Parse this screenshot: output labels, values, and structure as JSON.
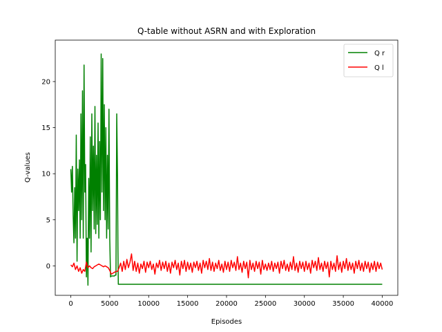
{
  "chart_data": {
    "type": "line",
    "title": "Q-table without ASRN and with Exploration",
    "xlabel": "Episodes",
    "ylabel": "Q-values",
    "xlim": [
      -2000,
      42000
    ],
    "ylim": [
      -3.2,
      24.5
    ],
    "xticks": [
      0,
      5000,
      10000,
      15000,
      20000,
      25000,
      30000,
      35000,
      40000
    ],
    "yticks": [
      0,
      5,
      10,
      15,
      20
    ],
    "grid": false,
    "legend_position": "upper right",
    "series": [
      {
        "name": "Q r",
        "color": "#008000",
        "points": [
          [
            0,
            10.5
          ],
          [
            100,
            8.0
          ],
          [
            200,
            10.8
          ],
          [
            300,
            5.5
          ],
          [
            400,
            2.5
          ],
          [
            500,
            8.5
          ],
          [
            600,
            3.0
          ],
          [
            700,
            14.2
          ],
          [
            800,
            0.5
          ],
          [
            900,
            10.5
          ],
          [
            1000,
            6.0
          ],
          [
            1100,
            11.5
          ],
          [
            1200,
            3.0
          ],
          [
            1300,
            16.5
          ],
          [
            1400,
            5.0
          ],
          [
            1500,
            19.0
          ],
          [
            1600,
            3.0
          ],
          [
            1700,
            21.8
          ],
          [
            1800,
            8.0
          ],
          [
            1900,
            11.0
          ],
          [
            2000,
            -1.2
          ],
          [
            2100,
            3.0
          ],
          [
            2200,
            -2.1
          ],
          [
            2300,
            9.5
          ],
          [
            2400,
            3.0
          ],
          [
            2500,
            14.0
          ],
          [
            2600,
            1.5
          ],
          [
            2700,
            16.5
          ],
          [
            2800,
            6.0
          ],
          [
            2900,
            13.0
          ],
          [
            3000,
            4.0
          ],
          [
            3100,
            17.3
          ],
          [
            3200,
            3.5
          ],
          [
            3300,
            12.0
          ],
          [
            3400,
            4.5
          ],
          [
            3500,
            15.5
          ],
          [
            3600,
            3.0
          ],
          [
            3700,
            13.5
          ],
          [
            3800,
            5.0
          ],
          [
            3900,
            23.0
          ],
          [
            4000,
            8.0
          ],
          [
            4100,
            22.5
          ],
          [
            4200,
            6.0
          ],
          [
            4300,
            17.5
          ],
          [
            4400,
            5.0
          ],
          [
            4500,
            15.0
          ],
          [
            4600,
            3.0
          ],
          [
            4700,
            12.0
          ],
          [
            4800,
            4.0
          ],
          [
            4900,
            17.0
          ],
          [
            5000,
            3.0
          ],
          [
            5100,
            -1.2
          ],
          [
            5200,
            -1.1
          ],
          [
            5300,
            -1.1
          ],
          [
            5400,
            -1.1
          ],
          [
            5500,
            -1.1
          ],
          [
            5600,
            -1.1
          ],
          [
            5700,
            -1.0
          ],
          [
            5800,
            -1.0
          ],
          [
            5900,
            16.5
          ],
          [
            6000,
            9.5
          ],
          [
            6050,
            2.0
          ],
          [
            6100,
            -2.0
          ],
          [
            40000,
            -2.0
          ]
        ]
      },
      {
        "name": "Q l",
        "color": "#ff0000",
        "points": [
          [
            0,
            0.1
          ],
          [
            200,
            -0.1
          ],
          [
            400,
            0.3
          ],
          [
            600,
            -0.4
          ],
          [
            800,
            0.0
          ],
          [
            1000,
            -0.6
          ],
          [
            1200,
            -0.2
          ],
          [
            1400,
            -0.8
          ],
          [
            1600,
            -0.4
          ],
          [
            1800,
            -0.6
          ],
          [
            2000,
            0.4
          ],
          [
            2200,
            -0.2
          ],
          [
            2400,
            0.0
          ],
          [
            2600,
            -0.2
          ],
          [
            2800,
            -0.3
          ],
          [
            3000,
            -0.1
          ],
          [
            3200,
            0.0
          ],
          [
            3400,
            0.1
          ],
          [
            3600,
            0.2
          ],
          [
            3800,
            0.1
          ],
          [
            4000,
            0.0
          ],
          [
            4200,
            -0.1
          ],
          [
            4400,
            0.0
          ],
          [
            4600,
            -0.1
          ],
          [
            4800,
            -0.2
          ],
          [
            5000,
            -0.5
          ],
          [
            5200,
            -0.9
          ],
          [
            5400,
            -0.8
          ],
          [
            5600,
            -0.7
          ],
          [
            5800,
            -0.6
          ],
          [
            6000,
            -0.6
          ],
          [
            6200,
            -0.2
          ],
          [
            6400,
            0.3
          ],
          [
            6600,
            -0.6
          ],
          [
            6800,
            0.5
          ],
          [
            7000,
            -0.4
          ],
          [
            7200,
            0.7
          ],
          [
            7400,
            -0.2
          ],
          [
            7600,
            0.4
          ],
          [
            7800,
            1.3
          ],
          [
            8000,
            -0.5
          ],
          [
            8200,
            0.5
          ],
          [
            8400,
            -0.6
          ],
          [
            8600,
            0.3
          ],
          [
            8800,
            -0.8
          ],
          [
            9000,
            0.2
          ],
          [
            9200,
            -0.3
          ],
          [
            9400,
            0.5
          ],
          [
            9600,
            -0.7
          ],
          [
            9800,
            0.4
          ],
          [
            10000,
            -0.2
          ],
          [
            10200,
            0.5
          ],
          [
            10400,
            -0.4
          ],
          [
            10600,
            0.2
          ],
          [
            10800,
            -0.9
          ],
          [
            11000,
            0.3
          ],
          [
            11200,
            -0.2
          ],
          [
            11400,
            0.6
          ],
          [
            11600,
            -0.5
          ],
          [
            11800,
            0.4
          ],
          [
            12000,
            -0.3
          ],
          [
            12200,
            0.5
          ],
          [
            12400,
            -0.6
          ],
          [
            12600,
            0.3
          ],
          [
            12800,
            -0.8
          ],
          [
            13000,
            0.4
          ],
          [
            13200,
            -0.2
          ],
          [
            13400,
            0.6
          ],
          [
            13600,
            -0.4
          ],
          [
            13800,
            0.3
          ],
          [
            14000,
            -1.0
          ],
          [
            14200,
            0.5
          ],
          [
            14400,
            -0.3
          ],
          [
            14600,
            0.6
          ],
          [
            14800,
            -0.6
          ],
          [
            15000,
            0.4
          ],
          [
            15200,
            -0.4
          ],
          [
            15400,
            0.3
          ],
          [
            15600,
            -0.7
          ],
          [
            15800,
            0.4
          ],
          [
            16000,
            -0.2
          ],
          [
            16200,
            0.5
          ],
          [
            16400,
            -0.5
          ],
          [
            16600,
            0.3
          ],
          [
            16800,
            -0.8
          ],
          [
            17000,
            0.6
          ],
          [
            17200,
            -0.2
          ],
          [
            17400,
            0.5
          ],
          [
            17600,
            -0.4
          ],
          [
            17800,
            0.8
          ],
          [
            18000,
            -0.5
          ],
          [
            18200,
            0.4
          ],
          [
            18400,
            -0.6
          ],
          [
            18600,
            0.3
          ],
          [
            18800,
            -0.3
          ],
          [
            19000,
            0.6
          ],
          [
            19200,
            -0.5
          ],
          [
            19400,
            0.2
          ],
          [
            19600,
            -0.7
          ],
          [
            19800,
            0.5
          ],
          [
            20000,
            -0.4
          ],
          [
            20200,
            0.4
          ],
          [
            20400,
            -0.6
          ],
          [
            20600,
            0.6
          ],
          [
            20800,
            -0.2
          ],
          [
            21000,
            0.4
          ],
          [
            21200,
            -0.5
          ],
          [
            21400,
            1.0
          ],
          [
            21600,
            -0.4
          ],
          [
            21800,
            0.3
          ],
          [
            22000,
            -0.7
          ],
          [
            22200,
            0.5
          ],
          [
            22400,
            -0.3
          ],
          [
            22600,
            0.4
          ],
          [
            22800,
            -1.3
          ],
          [
            23000,
            0.6
          ],
          [
            23200,
            -0.4
          ],
          [
            23400,
            0.3
          ],
          [
            23600,
            -0.6
          ],
          [
            23800,
            0.5
          ],
          [
            24000,
            -0.3
          ],
          [
            24200,
            0.4
          ],
          [
            24400,
            -0.9
          ],
          [
            24600,
            0.6
          ],
          [
            24800,
            -0.4
          ],
          [
            25000,
            0.2
          ],
          [
            25200,
            -0.5
          ],
          [
            25400,
            0.3
          ],
          [
            25600,
            -0.4
          ],
          [
            25800,
            0.5
          ],
          [
            26000,
            -0.6
          ],
          [
            26200,
            0.3
          ],
          [
            26400,
            -0.3
          ],
          [
            26600,
            0.4
          ],
          [
            26800,
            -0.8
          ],
          [
            27000,
            0.5
          ],
          [
            27200,
            -0.3
          ],
          [
            27400,
            0.6
          ],
          [
            27600,
            -0.5
          ],
          [
            27800,
            0.2
          ],
          [
            28000,
            -0.6
          ],
          [
            28200,
            0.4
          ],
          [
            28400,
            -0.4
          ],
          [
            28600,
            1.0
          ],
          [
            28800,
            -0.5
          ],
          [
            29000,
            0.3
          ],
          [
            29200,
            -0.7
          ],
          [
            29400,
            0.5
          ],
          [
            29600,
            -0.3
          ],
          [
            29800,
            0.4
          ],
          [
            30000,
            -0.6
          ],
          [
            30200,
            0.5
          ],
          [
            30400,
            -0.4
          ],
          [
            30600,
            0.3
          ],
          [
            30800,
            -0.8
          ],
          [
            31000,
            0.6
          ],
          [
            31200,
            -0.2
          ],
          [
            31400,
            0.5
          ],
          [
            31600,
            -0.5
          ],
          [
            31800,
            0.9
          ],
          [
            32000,
            -0.4
          ],
          [
            32200,
            0.3
          ],
          [
            32400,
            -0.6
          ],
          [
            32600,
            0.5
          ],
          [
            32800,
            -0.3
          ],
          [
            33000,
            0.4
          ],
          [
            33200,
            -1.2
          ],
          [
            33400,
            0.5
          ],
          [
            33600,
            -0.4
          ],
          [
            33800,
            0.3
          ],
          [
            34000,
            -0.6
          ],
          [
            34200,
            1.1
          ],
          [
            34400,
            -0.4
          ],
          [
            34600,
            0.4
          ],
          [
            34800,
            -0.7
          ],
          [
            35000,
            0.5
          ],
          [
            35200,
            -0.3
          ],
          [
            35400,
            0.8
          ],
          [
            35600,
            -0.5
          ],
          [
            35800,
            0.4
          ],
          [
            36000,
            -0.4
          ],
          [
            36200,
            0.3
          ],
          [
            36400,
            -0.8
          ],
          [
            36600,
            0.5
          ],
          [
            36800,
            -0.3
          ],
          [
            37000,
            0.6
          ],
          [
            37200,
            -0.5
          ],
          [
            37400,
            0.3
          ],
          [
            37600,
            -0.6
          ],
          [
            37800,
            0.5
          ],
          [
            38000,
            -0.3
          ],
          [
            38200,
            0.4
          ],
          [
            38400,
            -0.7
          ],
          [
            38600,
            0.3
          ],
          [
            38800,
            -0.4
          ],
          [
            39000,
            0.5
          ],
          [
            39200,
            -0.6
          ],
          [
            39400,
            0.4
          ],
          [
            39600,
            -0.3
          ],
          [
            39800,
            0.3
          ],
          [
            40000,
            -0.4
          ]
        ]
      }
    ]
  }
}
